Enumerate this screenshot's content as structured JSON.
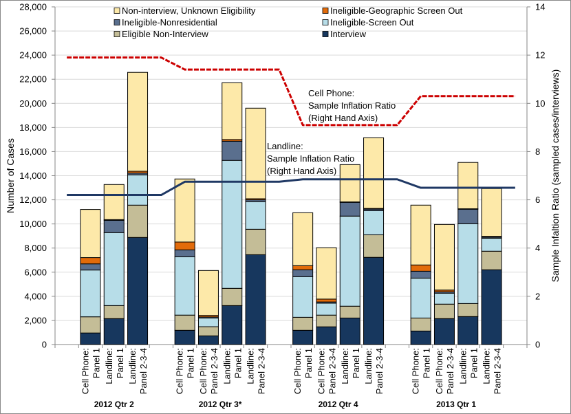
{
  "chart_data": {
    "type": "bar",
    "stacked": true,
    "ylabel": "Number of Cases",
    "y2label": "Sample Infaltion Ratio (sampled cases/interviews)",
    "ylim": [
      0,
      28000
    ],
    "y2lim": [
      0,
      14
    ],
    "yticks": [
      "0",
      "2,000",
      "4,000",
      "6,000",
      "8,000",
      "10,000",
      "12,000",
      "14,000",
      "16,000",
      "18,000",
      "20,000",
      "22,000",
      "24,000",
      "26,000",
      "28,000"
    ],
    "y2ticks": [
      "0",
      "2",
      "4",
      "6",
      "8",
      "10",
      "12",
      "14"
    ],
    "grid": true,
    "legend_placement": "top",
    "groups": [
      {
        "label": "2012 Qtr 2",
        "bars": [
          [
            "Cell Phone:",
            "Panel 1"
          ],
          [
            "Landline:",
            "Panel 1"
          ],
          [
            "Landline:",
            "Panel 2-3-4"
          ]
        ]
      },
      {
        "label": "2012 Qtr 3*",
        "bars": [
          [
            "Cell Phone:",
            "Panel 1"
          ],
          [
            "Cell Phone:",
            "Panel 2-3-4"
          ],
          [
            "Landline:",
            "Panel 1"
          ],
          [
            "Landline:",
            "Panel 2-3-4"
          ]
        ]
      },
      {
        "label": "2012 Qtr 4",
        "bars": [
          [
            "Cell Phone:",
            "Panel 1"
          ],
          [
            "Cell Phone:",
            "Panel 2-3-4"
          ],
          [
            "Landline:",
            "Panel 1"
          ],
          [
            "Landline:",
            "Panel 2-3-4"
          ]
        ]
      },
      {
        "label": "2013 Qtr 1",
        "bars": [
          [
            "Cell Phone:",
            "Panel 1"
          ],
          [
            "Cell Phone:",
            "Panel 2-3-4"
          ],
          [
            "Landline:",
            "Panel 1"
          ],
          [
            "Landline:",
            "Panel 2-3-4"
          ]
        ]
      }
    ],
    "series": [
      {
        "name": "Interview",
        "color": "#17375e",
        "values": [
          960,
          2150,
          8880,
          1180,
          720,
          3230,
          7450,
          1180,
          1470,
          2200,
          7230,
          1120,
          2150,
          2320,
          6200
        ]
      },
      {
        "name": "Eligible Non-Interview",
        "color": "#c4bd97",
        "values": [
          1340,
          1080,
          2680,
          1260,
          760,
          1430,
          2110,
          1080,
          970,
          980,
          1870,
          1080,
          1200,
          1080,
          1540
        ]
      },
      {
        "name": "Ineligible-Screen Out",
        "color": "#b7dde8",
        "values": [
          3880,
          6050,
          2510,
          4840,
          720,
          10610,
          2290,
          3370,
          990,
          7470,
          2000,
          3310,
          910,
          6620,
          1080
        ]
      },
      {
        "name": "Ineligible-Nonresidential",
        "color": "#5a6f8e",
        "values": [
          510,
          1020,
          150,
          570,
          80,
          1590,
          150,
          570,
          100,
          1140,
          130,
          570,
          110,
          1200,
          90
        ]
      },
      {
        "name": "Ineligible-Geographic Screen Out",
        "color": "#e26b0a",
        "values": [
          520,
          60,
          150,
          650,
          130,
          140,
          90,
          340,
          240,
          40,
          60,
          520,
          150,
          40,
          60
        ]
      },
      {
        "name": "Non-interview, Unknown  Eligibility",
        "color": "#fde9a9",
        "values": [
          3990,
          2910,
          8200,
          5230,
          3730,
          4710,
          7510,
          4390,
          4260,
          3090,
          5860,
          4960,
          5440,
          3840,
          3960
        ]
      }
    ],
    "legend_order": [
      5,
      4,
      3,
      2,
      1,
      0
    ],
    "lines": [
      {
        "name": "Cell Phone: Sample Inflation Ratio",
        "axis": "right",
        "color": "#cc0000",
        "style": "dashed",
        "values_by_quarter": [
          11.9,
          11.4,
          9.1,
          10.3
        ]
      },
      {
        "name": "Landline: Sample Inflation Ratio",
        "axis": "right",
        "color": "#1f3864",
        "style": "solid",
        "values_by_quarter": [
          6.2,
          6.75,
          6.85,
          6.5
        ]
      }
    ],
    "annotations": [
      {
        "lines": [
          "Cell Phone:",
          "Sample Inflation Ratio",
          "(Right Hand Axis)"
        ]
      },
      {
        "lines": [
          "Landline:",
          "Sample Inflation Ratio",
          "(Right Hand Axis)"
        ]
      }
    ]
  }
}
